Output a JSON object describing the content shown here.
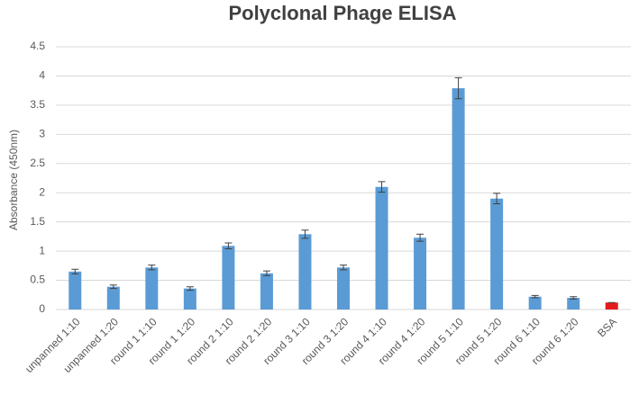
{
  "chart_data": {
    "type": "bar",
    "title": "Polyclonal Phage ELISA",
    "y_label": "Absorbance (450nm)",
    "categories": [
      "unpanned 1:10",
      "unpanned 1:20",
      "round 1 1:10",
      "round 1 1:20",
      "round 2 1:10",
      "round 2 1:20",
      "round 3 1:10",
      "round 3 1:20",
      "round 4 1:10",
      "round 4 1:20",
      "round 5 1:10",
      "round 5 1:20",
      "round 6 1:10",
      "round 6 1:20",
      "BSA"
    ],
    "values": [
      0.65,
      0.39,
      0.72,
      0.36,
      1.09,
      0.62,
      1.29,
      0.72,
      2.1,
      1.23,
      3.79,
      1.9,
      0.22,
      0.2,
      0.12
    ],
    "errors": [
      0.04,
      0.03,
      0.04,
      0.03,
      0.05,
      0.04,
      0.07,
      0.04,
      0.09,
      0.06,
      0.18,
      0.09,
      0.02,
      0.02,
      0
    ],
    "colors": [
      "#5b9bd5",
      "#5b9bd5",
      "#5b9bd5",
      "#5b9bd5",
      "#5b9bd5",
      "#5b9bd5",
      "#5b9bd5",
      "#5b9bd5",
      "#5b9bd5",
      "#5b9bd5",
      "#5b9bd5",
      "#5b9bd5",
      "#5b9bd5",
      "#5b9bd5",
      "#e31a1c"
    ],
    "ylim": [
      0,
      4.5
    ],
    "yticks": [
      0,
      0.5,
      1,
      1.5,
      2,
      2.5,
      3,
      3.5,
      4,
      4.5
    ],
    "grid": true
  }
}
